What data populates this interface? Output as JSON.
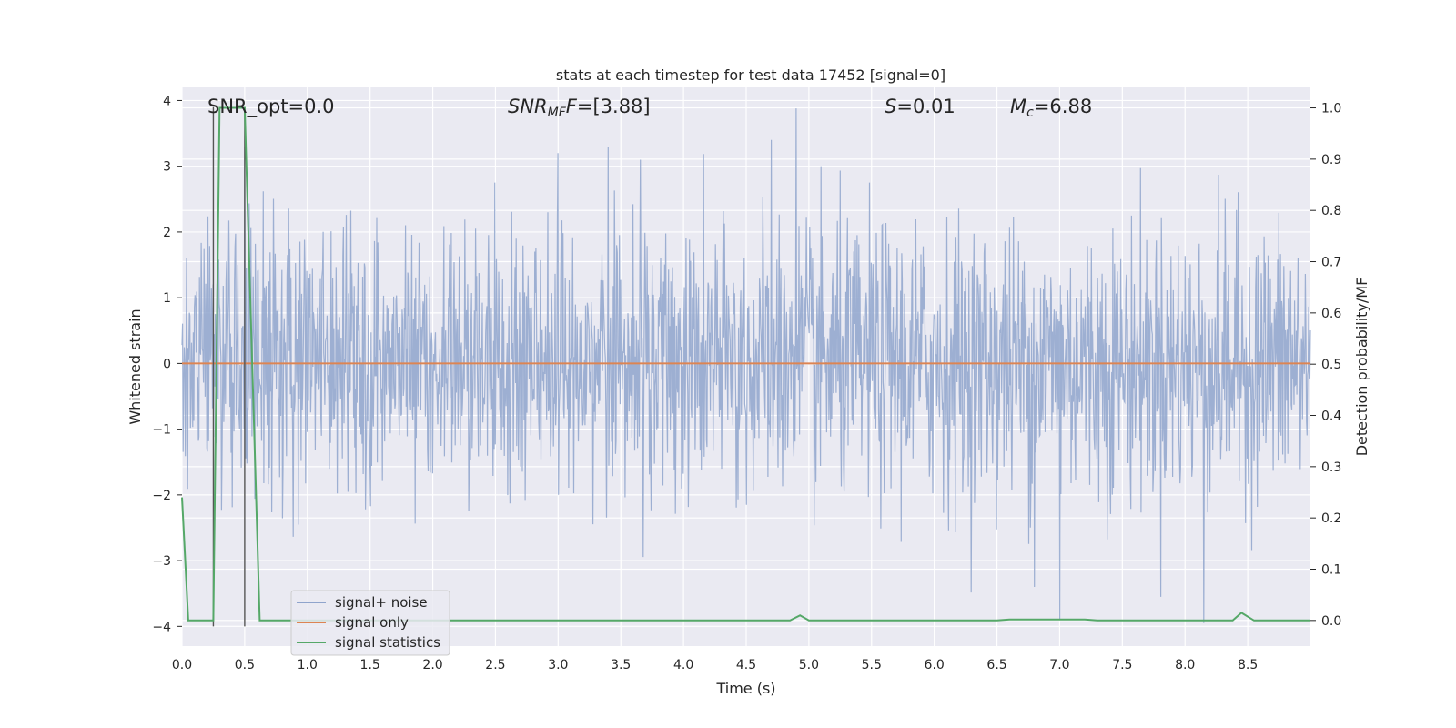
{
  "chart_data": {
    "type": "line",
    "title": "stats at each timestep for test data 17452 [signal=0]",
    "xlabel": "Time (s)",
    "ylabel": "Whitened strain",
    "ylabel_right": "Detection probability/MF",
    "xlim": [
      0,
      9.0
    ],
    "ylim": [
      -4.3,
      4.2
    ],
    "ylim_right": [
      -0.05,
      1.04
    ],
    "x_ticks": [
      0.0,
      0.5,
      1.0,
      1.5,
      2.0,
      2.5,
      3.0,
      3.5,
      4.0,
      4.5,
      5.0,
      5.5,
      6.0,
      6.5,
      7.0,
      7.5,
      8.0,
      8.5
    ],
    "x_tick_labels": [
      "0.0",
      "0.5",
      "1.0",
      "1.5",
      "2.0",
      "2.5",
      "3.0",
      "3.5",
      "4.0",
      "4.5",
      "5.0",
      "5.5",
      "6.0",
      "6.5",
      "7.0",
      "7.5",
      "8.0",
      "8.5"
    ],
    "y_ticks": [
      -4,
      -3,
      -2,
      -1,
      0,
      1,
      2,
      3,
      4
    ],
    "y_tick_labels": [
      "−4",
      "−3",
      "−2",
      "−1",
      "0",
      "1",
      "2",
      "3",
      "4"
    ],
    "y_right_ticks": [
      0.0,
      0.1,
      0.2,
      0.3,
      0.4,
      0.5,
      0.6,
      0.7,
      0.8,
      0.9,
      1.0
    ],
    "y_right_tick_labels": [
      "0.0",
      "0.1",
      "0.2",
      "0.3",
      "0.4",
      "0.5",
      "0.6",
      "0.7",
      "0.8",
      "0.9",
      "1.0"
    ],
    "annotations": {
      "snr_opt": "SNR_opt=0.0",
      "snr_mf_main": "SNR",
      "snr_mf_sub": "MF",
      "snr_mf_value": "=[3.88]",
      "s_symbol": "S",
      "s_value": "=0.01",
      "mc_main": "M",
      "mc_sub": "c",
      "mc_value": "=6.88"
    },
    "legend": {
      "placement": "lower-left",
      "entries": [
        {
          "label": "signal+ noise",
          "color": "#8fa4cc"
        },
        {
          "label": "signal only",
          "color": "#dd8452"
        },
        {
          "label": "signal statistics",
          "color": "#55a868"
        }
      ]
    },
    "vertical_markers_x": [
      0.25,
      0.5
    ],
    "series": [
      {
        "name": "signal+ noise",
        "description": "whitened strain noise, approx. normal with std ~1, peaks to ~3.9 / -4.0",
        "duration": 9.0,
        "samples": 2000,
        "peaks": [
          {
            "x": 4.9,
            "y": 3.88
          },
          {
            "x": 0.5,
            "y": 3.3
          },
          {
            "x": 3.0,
            "y": 3.2
          },
          {
            "x": 3.4,
            "y": 3.3
          },
          {
            "x": 4.7,
            "y": 3.4
          },
          {
            "x": 8.15,
            "y": -3.95
          },
          {
            "x": 7.0,
            "y": -3.9
          },
          {
            "x": 6.8,
            "y": -3.4
          }
        ]
      },
      {
        "name": "signal only",
        "x": [
          0,
          9.0
        ],
        "y": [
          0,
          0
        ]
      },
      {
        "name": "signal statistics",
        "axis": "right",
        "x": [
          0.0,
          0.05,
          0.25,
          0.3,
          0.5,
          0.62,
          4.85,
          4.93,
          5.0,
          6.5,
          6.6,
          7.2,
          7.3,
          8.38,
          8.45,
          8.55,
          9.0
        ],
        "y": [
          0.24,
          0.0,
          0.0,
          1.0,
          1.0,
          0.0,
          0.0,
          0.01,
          0.0,
          0.0,
          0.002,
          0.002,
          0.0,
          0.0,
          0.015,
          0.0,
          0.0
        ]
      }
    ]
  }
}
